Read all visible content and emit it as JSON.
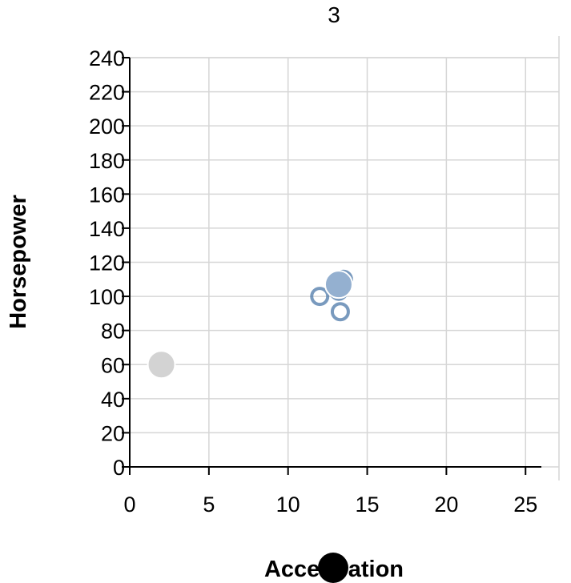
{
  "chart_data": {
    "type": "scatter",
    "title": "3",
    "xlabel": "Acceleration",
    "ylabel": "Horsepower",
    "xlim": [
      0,
      26
    ],
    "ylim": [
      0,
      240
    ],
    "x_ticks": [
      0,
      5,
      10,
      15,
      20,
      25
    ],
    "y_ticks": [
      0,
      20,
      40,
      60,
      80,
      100,
      120,
      140,
      160,
      180,
      200,
      220,
      240
    ],
    "grid": true,
    "series": [
      {
        "style": "hollow",
        "color": "#4c78a8",
        "points": [
          {
            "x": 12.0,
            "y": 100
          },
          {
            "x": 13.5,
            "y": 110
          },
          {
            "x": 13.3,
            "y": 91
          },
          {
            "x": 13.2,
            "y": 103
          }
        ]
      },
      {
        "style": "filled",
        "color": "#94b0d0",
        "points": [
          {
            "x": 13.2,
            "y": 107
          }
        ]
      },
      {
        "style": "filled",
        "color": "#d3d3d3",
        "points": [
          {
            "x": 2.0,
            "y": 60
          }
        ]
      }
    ]
  }
}
